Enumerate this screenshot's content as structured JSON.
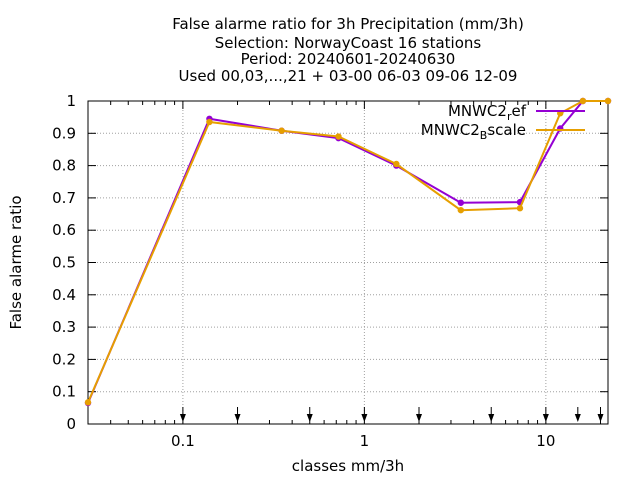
{
  "chart_data": {
    "type": "line",
    "title_lines": [
      "False alarme ratio  for 3h Precipitation (mm/3h)",
      "Selection: NorwayCoast     16 stations",
      "Period: 20240601-20240630",
      "Used 00,03,...,21 + 03-00 06-03 09-06 12-09"
    ],
    "xlabel": "classes mm/3h",
    "ylabel": "False alarme ratio",
    "x_scale": "log",
    "xlim": [
      0.03,
      22
    ],
    "ylim": [
      0,
      1
    ],
    "x_ticks": [
      0.1,
      1,
      10
    ],
    "x_tick_labels": [
      "0.1",
      "1",
      "10"
    ],
    "y_ticks": [
      0,
      0.1,
      0.2,
      0.3,
      0.4,
      0.5,
      0.6,
      0.7,
      0.8,
      0.9,
      1
    ],
    "y_tick_labels": [
      "0",
      "0.1",
      "0.2",
      "0.3",
      "0.4",
      "0.5",
      "0.6",
      "0.7",
      "0.8",
      "0.9",
      "1"
    ],
    "grid": true,
    "legend_position": "top-right",
    "class_markers_x": [
      0.1,
      0.2,
      0.5,
      1,
      2,
      5,
      10,
      15,
      20
    ],
    "series": [
      {
        "name": "MNWC2_ref",
        "legend_base": "MNWC2",
        "legend_sub": "r",
        "legend_rest": "ef",
        "color": "#9400d3",
        "x": [
          0.03,
          0.14,
          0.35,
          0.72,
          1.5,
          3.4,
          7.2,
          12,
          16,
          22
        ],
        "y": [
          0.065,
          0.945,
          0.908,
          0.885,
          0.8,
          0.685,
          0.687,
          0.915,
          1.0,
          1.0
        ]
      },
      {
        "name": "MNWC2_Bscale",
        "legend_base": "MNWC2",
        "legend_sub": "B",
        "legend_rest": "scale",
        "color": "#e69f00",
        "x": [
          0.03,
          0.14,
          0.35,
          0.72,
          1.5,
          3.4,
          7.2,
          12,
          16,
          22
        ],
        "y": [
          0.067,
          0.935,
          0.908,
          0.89,
          0.805,
          0.662,
          0.668,
          0.962,
          1.0,
          1.0
        ]
      }
    ]
  }
}
